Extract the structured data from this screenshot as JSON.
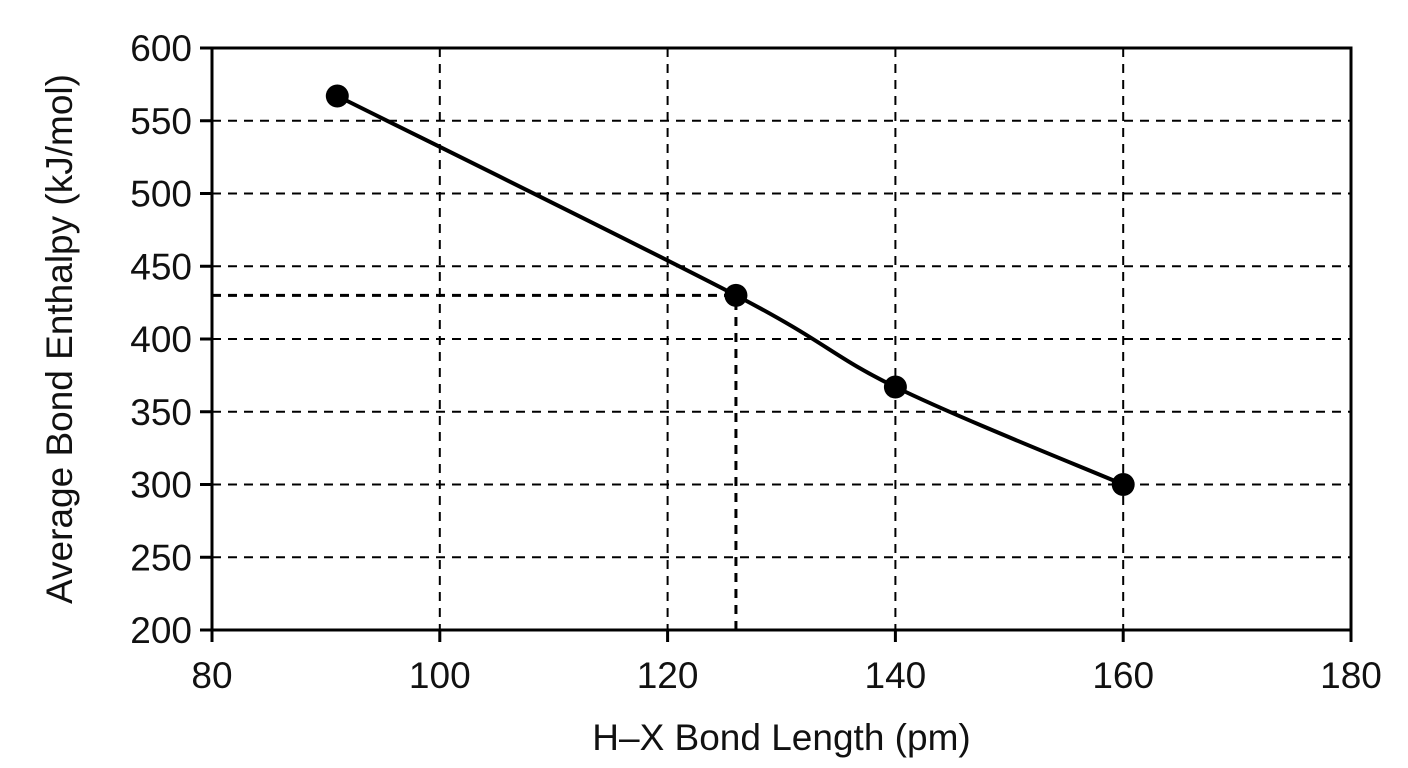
{
  "chart_data": {
    "type": "line",
    "xlabel": "H–X Bond Length (pm)",
    "ylabel": "Average Bond Enthalpy (kJ/mol)",
    "xlim": [
      80,
      180
    ],
    "ylim": [
      200,
      600
    ],
    "x_ticks": [
      80,
      100,
      120,
      140,
      160,
      180
    ],
    "y_ticks": [
      200,
      250,
      300,
      350,
      400,
      450,
      500,
      550,
      600
    ],
    "grid": true,
    "grid_style": "dashed",
    "series": [
      {
        "x": [
          91,
          126,
          140,
          160
        ],
        "y": [
          567,
          430,
          367,
          300
        ],
        "markers": "filled-circle",
        "line": "smooth"
      }
    ],
    "reference_lines": [
      {
        "orientation": "vertical",
        "x": 126,
        "from_y": 200,
        "to_y": 430
      },
      {
        "orientation": "horizontal",
        "y": 430,
        "from_x": 80,
        "to_x": 126
      }
    ],
    "colors": {
      "line": "#000000",
      "marker": "#000000",
      "grid": "#000000"
    }
  }
}
